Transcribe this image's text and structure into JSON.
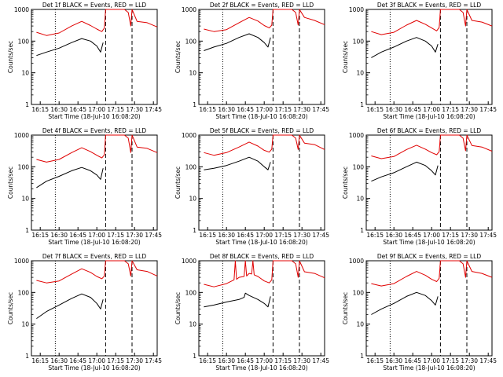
{
  "page": {
    "title_template": "Det {n}f BLACK = Events, RED = LLD",
    "xlabel": "Start Time (18-Jul-10 16:08:20)",
    "ylabel": "Counts/sec"
  },
  "colors": {
    "events": "#000000",
    "lld": "#e00000",
    "axis": "#000000",
    "background": "#ffffff"
  },
  "chart_data": [
    {
      "type": "line",
      "title": "Det 1f BLACK = Events, RED = LLD",
      "xlabel": "Start Time (18-Jul-10 16:08:20)",
      "ylabel": "Counts/sec",
      "y_scale": "log",
      "ylim": [
        1,
        1000
      ],
      "xlim": [
        "16:08",
        "17:48"
      ],
      "x_ticks": [
        "16:15",
        "16:30",
        "16:45",
        "17:00",
        "17:15",
        "17:30",
        "17:45"
      ],
      "y_ticks": [
        1,
        10,
        100,
        1000
      ],
      "vlines": [
        {
          "x": "16:27",
          "style": "dotted"
        },
        {
          "x": "17:07",
          "style": "dashed"
        },
        {
          "x": "17:28",
          "style": "dashed"
        }
      ],
      "series": [
        {
          "name": "LLD",
          "color": "#e00000",
          "x": [
            "16:12",
            "16:20",
            "16:30",
            "16:40",
            "16:48",
            "16:55",
            "17:00",
            "17:04",
            "17:06",
            "17:07",
            "17:15",
            "17:22",
            "17:25",
            "17:27",
            "17:28",
            "17:32",
            "17:40",
            "17:48"
          ],
          "y": [
            190,
            150,
            180,
            300,
            420,
            310,
            240,
            200,
            260,
            1000,
            1000,
            1000,
            800,
            300,
            1000,
            420,
            380,
            280
          ]
        },
        {
          "name": "Events",
          "color": "#000000",
          "x": [
            "16:12",
            "16:20",
            "16:30",
            "16:40",
            "16:48",
            "16:55",
            "17:00",
            "17:03",
            "17:05"
          ],
          "y": [
            35,
            45,
            60,
            90,
            120,
            100,
            70,
            45,
            90
          ]
        }
      ]
    },
    {
      "type": "line",
      "title": "Det 2f BLACK = Events, RED = LLD",
      "xlabel": "Start Time (18-Jul-10 16:08:20)",
      "ylabel": "Counts/sec",
      "y_scale": "log",
      "ylim": [
        1,
        1000
      ],
      "xlim": [
        "16:08",
        "17:48"
      ],
      "x_ticks": [
        "16:15",
        "16:30",
        "16:45",
        "17:00",
        "17:15",
        "17:30",
        "17:45"
      ],
      "y_ticks": [
        1,
        10,
        100,
        1000
      ],
      "vlines": [
        {
          "x": "16:27",
          "style": "dotted"
        },
        {
          "x": "17:07",
          "style": "dashed"
        },
        {
          "x": "17:28",
          "style": "dashed"
        }
      ],
      "series": [
        {
          "name": "LLD",
          "color": "#e00000",
          "x": [
            "16:12",
            "16:20",
            "16:30",
            "16:40",
            "16:48",
            "16:55",
            "17:00",
            "17:04",
            "17:06",
            "17:07",
            "17:15",
            "17:22",
            "17:25",
            "17:27",
            "17:28",
            "17:32",
            "17:40",
            "17:48"
          ],
          "y": [
            240,
            200,
            230,
            380,
            560,
            430,
            310,
            260,
            320,
            1000,
            1000,
            1000,
            800,
            320,
            1000,
            560,
            450,
            330
          ]
        },
        {
          "name": "Events",
          "color": "#000000",
          "x": [
            "16:12",
            "16:20",
            "16:30",
            "16:40",
            "16:48",
            "16:55",
            "17:00",
            "17:03",
            "17:05"
          ],
          "y": [
            50,
            65,
            85,
            130,
            170,
            130,
            90,
            65,
            130
          ]
        }
      ]
    },
    {
      "type": "line",
      "title": "Det 3f BLACK = Events, RED = LLD",
      "xlabel": "Start Time (18-Jul-10 16:08:20)",
      "ylabel": "Counts/sec",
      "y_scale": "log",
      "ylim": [
        1,
        1000
      ],
      "xlim": [
        "16:08",
        "17:48"
      ],
      "x_ticks": [
        "16:15",
        "16:30",
        "16:45",
        "17:00",
        "17:15",
        "17:30",
        "17:45"
      ],
      "y_ticks": [
        1,
        10,
        100,
        1000
      ],
      "vlines": [
        {
          "x": "16:27",
          "style": "dotted"
        },
        {
          "x": "17:07",
          "style": "dashed"
        },
        {
          "x": "17:28",
          "style": "dashed"
        }
      ],
      "series": [
        {
          "name": "LLD",
          "color": "#e00000",
          "x": [
            "16:12",
            "16:20",
            "16:30",
            "16:40",
            "16:48",
            "16:55",
            "17:00",
            "17:04",
            "17:06",
            "17:07",
            "17:15",
            "17:22",
            "17:25",
            "17:27",
            "17:28",
            "17:32",
            "17:40",
            "17:48"
          ],
          "y": [
            200,
            160,
            190,
            320,
            450,
            340,
            260,
            210,
            270,
            1000,
            1000,
            1000,
            800,
            300,
            1000,
            450,
            400,
            300
          ]
        },
        {
          "name": "Events",
          "color": "#000000",
          "x": [
            "16:12",
            "16:20",
            "16:30",
            "16:40",
            "16:48",
            "16:55",
            "17:00",
            "17:03",
            "17:05"
          ],
          "y": [
            30,
            45,
            65,
            100,
            130,
            100,
            70,
            45,
            80
          ]
        }
      ]
    },
    {
      "type": "line",
      "title": "Det 4f BLACK = Events, RED = LLD",
      "xlabel": "Start Time (18-Jul-10 16:08:20)",
      "ylabel": "Counts/sec",
      "y_scale": "log",
      "ylim": [
        1,
        1000
      ],
      "xlim": [
        "16:08",
        "17:48"
      ],
      "x_ticks": [
        "16:15",
        "16:30",
        "16:45",
        "17:00",
        "17:15",
        "17:30",
        "17:45"
      ],
      "y_ticks": [
        1,
        10,
        100,
        1000
      ],
      "vlines": [
        {
          "x": "16:27",
          "style": "dotted"
        },
        {
          "x": "17:07",
          "style": "dashed"
        },
        {
          "x": "17:28",
          "style": "dashed"
        }
      ],
      "series": [
        {
          "name": "LLD",
          "color": "#e00000",
          "x": [
            "16:12",
            "16:20",
            "16:30",
            "16:40",
            "16:48",
            "16:55",
            "17:00",
            "17:04",
            "17:06",
            "17:07",
            "17:15",
            "17:22",
            "17:25",
            "17:27",
            "17:28",
            "17:32",
            "17:40",
            "17:48"
          ],
          "y": [
            170,
            140,
            170,
            280,
            400,
            300,
            230,
            190,
            240,
            1000,
            1000,
            1000,
            800,
            280,
            1000,
            420,
            380,
            280
          ]
        },
        {
          "name": "Events",
          "color": "#000000",
          "x": [
            "16:12",
            "16:20",
            "16:30",
            "16:40",
            "16:48",
            "16:55",
            "17:00",
            "17:03",
            "17:05"
          ],
          "y": [
            22,
            35,
            50,
            75,
            95,
            75,
            55,
            40,
            90
          ]
        }
      ]
    },
    {
      "type": "line",
      "title": "Det 5f BLACK = Events, RED = LLD",
      "xlabel": "Start Time (18-Jul-10 16:08:20)",
      "ylabel": "Counts/sec",
      "y_scale": "log",
      "ylim": [
        1,
        1000
      ],
      "xlim": [
        "16:08",
        "17:48"
      ],
      "x_ticks": [
        "16:15",
        "16:30",
        "16:45",
        "17:00",
        "17:15",
        "17:30",
        "17:45"
      ],
      "y_ticks": [
        1,
        10,
        100,
        1000
      ],
      "vlines": [
        {
          "x": "16:27",
          "style": "dotted"
        },
        {
          "x": "17:07",
          "style": "dashed"
        },
        {
          "x": "17:28",
          "style": "dashed"
        }
      ],
      "series": [
        {
          "name": "LLD",
          "color": "#e00000",
          "x": [
            "16:12",
            "16:20",
            "16:30",
            "16:40",
            "16:48",
            "16:55",
            "17:00",
            "17:04",
            "17:06",
            "17:07",
            "17:15",
            "17:22",
            "17:25",
            "17:27",
            "17:28",
            "17:32",
            "17:40",
            "17:48"
          ],
          "y": [
            280,
            230,
            280,
            420,
            600,
            450,
            330,
            290,
            360,
            1000,
            1000,
            1000,
            800,
            350,
            1000,
            560,
            500,
            350
          ]
        },
        {
          "name": "Events",
          "color": "#000000",
          "x": [
            "16:12",
            "16:20",
            "16:30",
            "16:40",
            "16:48",
            "16:55",
            "17:00",
            "17:03",
            "17:05"
          ],
          "y": [
            80,
            90,
            110,
            150,
            200,
            150,
            100,
            80,
            140
          ]
        }
      ]
    },
    {
      "type": "line",
      "title": "Det 6f BLACK = Events, RED = LLD",
      "xlabel": "Start Time (18-Jul-10 16:08:20)",
      "ylabel": "Counts/sec",
      "y_scale": "log",
      "ylim": [
        1,
        1000
      ],
      "xlim": [
        "16:08",
        "17:48"
      ],
      "x_ticks": [
        "16:15",
        "16:30",
        "16:45",
        "17:00",
        "17:15",
        "17:30",
        "17:45"
      ],
      "y_ticks": [
        1,
        10,
        100,
        1000
      ],
      "vlines": [
        {
          "x": "16:27",
          "style": "dotted"
        },
        {
          "x": "17:07",
          "style": "dashed"
        },
        {
          "x": "17:28",
          "style": "dashed"
        }
      ],
      "series": [
        {
          "name": "LLD",
          "color": "#e00000",
          "x": [
            "16:12",
            "16:20",
            "16:30",
            "16:40",
            "16:48",
            "16:55",
            "17:00",
            "17:04",
            "17:06",
            "17:07",
            "17:15",
            "17:22",
            "17:25",
            "17:27",
            "17:28",
            "17:32",
            "17:40",
            "17:48"
          ],
          "y": [
            220,
            180,
            210,
            350,
            480,
            360,
            280,
            240,
            300,
            1000,
            1000,
            1000,
            800,
            320,
            1000,
            470,
            420,
            310
          ]
        },
        {
          "name": "Events",
          "color": "#000000",
          "x": [
            "16:12",
            "16:20",
            "16:30",
            "16:40",
            "16:48",
            "16:55",
            "17:00",
            "17:03",
            "17:05"
          ],
          "y": [
            35,
            48,
            65,
            100,
            140,
            110,
            75,
            55,
            110
          ]
        }
      ]
    },
    {
      "type": "line",
      "title": "Det 7f BLACK = Events, RED = LLD",
      "xlabel": "Start Time (18-Jul-10 16:08:20)",
      "ylabel": "Counts/sec",
      "y_scale": "log",
      "ylim": [
        1,
        1000
      ],
      "xlim": [
        "16:08",
        "17:48"
      ],
      "x_ticks": [
        "16:15",
        "16:30",
        "16:45",
        "17:00",
        "17:15",
        "17:30",
        "17:45"
      ],
      "y_ticks": [
        1,
        10,
        100,
        1000
      ],
      "vlines": [
        {
          "x": "16:27",
          "style": "dotted"
        },
        {
          "x": "17:07",
          "style": "dashed"
        },
        {
          "x": "17:28",
          "style": "dashed"
        }
      ],
      "series": [
        {
          "name": "LLD",
          "color": "#e00000",
          "x": [
            "16:12",
            "16:20",
            "16:30",
            "16:40",
            "16:48",
            "16:55",
            "17:00",
            "17:04",
            "17:06",
            "17:07",
            "17:15",
            "17:22",
            "17:25",
            "17:27",
            "17:28",
            "17:32",
            "17:40",
            "17:48"
          ],
          "y": [
            240,
            200,
            230,
            380,
            560,
            430,
            320,
            270,
            330,
            1000,
            1000,
            1000,
            800,
            330,
            1000,
            520,
            460,
            330
          ]
        },
        {
          "name": "Events",
          "color": "#000000",
          "x": [
            "16:12",
            "16:20",
            "16:30",
            "16:40",
            "16:48",
            "16:55",
            "17:00",
            "17:03",
            "17:05"
          ],
          "y": [
            15,
            25,
            40,
            65,
            90,
            70,
            45,
            30,
            60
          ]
        }
      ]
    },
    {
      "type": "line",
      "title": "Det 8f BLACK = Events, RED = LLD",
      "xlabel": "Start Time (18-Jul-10 16:08:20)",
      "ylabel": "Counts/sec",
      "y_scale": "log",
      "ylim": [
        1,
        1000
      ],
      "xlim": [
        "16:08",
        "17:48"
      ],
      "x_ticks": [
        "16:15",
        "16:30",
        "16:45",
        "17:00",
        "17:15",
        "17:30",
        "17:45"
      ],
      "y_ticks": [
        1,
        10,
        100,
        1000
      ],
      "vlines": [
        {
          "x": "16:27",
          "style": "dotted"
        },
        {
          "x": "17:07",
          "style": "dashed"
        },
        {
          "x": "17:28",
          "style": "dashed"
        }
      ],
      "series": [
        {
          "name": "LLD",
          "color": "#e00000",
          "x": [
            "16:12",
            "16:20",
            "16:30",
            "16:36",
            "16:37",
            "16:38",
            "16:40",
            "16:44",
            "16:45",
            "16:46",
            "16:48",
            "16:50",
            "16:51",
            "16:52",
            "16:55",
            "17:00",
            "17:04",
            "17:06",
            "17:07",
            "17:15",
            "17:22",
            "17:25",
            "17:27",
            "17:28",
            "17:32",
            "17:40",
            "17:48"
          ],
          "y": [
            180,
            150,
            190,
            250,
            1000,
            260,
            300,
            320,
            1000,
            330,
            400,
            380,
            1000,
            360,
            320,
            230,
            200,
            250,
            1000,
            1000,
            1000,
            800,
            300,
            1000,
            450,
            400,
            290
          ]
        },
        {
          "name": "Events",
          "color": "#000000",
          "x": [
            "16:12",
            "16:20",
            "16:30",
            "16:40",
            "16:44",
            "16:45",
            "16:48",
            "16:55",
            "17:00",
            "17:03",
            "17:05"
          ],
          "y": [
            35,
            40,
            50,
            60,
            70,
            95,
            80,
            60,
            45,
            35,
            75
          ]
        }
      ]
    },
    {
      "type": "line",
      "title": "Det 9f BLACK = Events, RED = LLD",
      "xlabel": "Start Time (18-Jul-10 16:08:20)",
      "ylabel": "Counts/sec",
      "y_scale": "log",
      "ylim": [
        1,
        1000
      ],
      "xlim": [
        "16:08",
        "17:48"
      ],
      "x_ticks": [
        "16:15",
        "16:30",
        "16:45",
        "17:00",
        "17:15",
        "17:30",
        "17:45"
      ],
      "y_ticks": [
        1,
        10,
        100,
        1000
      ],
      "vlines": [
        {
          "x": "16:27",
          "style": "dotted"
        },
        {
          "x": "17:07",
          "style": "dashed"
        },
        {
          "x": "17:28",
          "style": "dashed"
        }
      ],
      "series": [
        {
          "name": "LLD",
          "color": "#e00000",
          "x": [
            "16:12",
            "16:20",
            "16:30",
            "16:40",
            "16:48",
            "16:55",
            "17:00",
            "17:04",
            "17:06",
            "17:07",
            "17:15",
            "17:22",
            "17:25",
            "17:27",
            "17:28",
            "17:32",
            "17:40",
            "17:48"
          ],
          "y": [
            190,
            160,
            190,
            320,
            460,
            350,
            260,
            220,
            280,
            1000,
            1000,
            1000,
            800,
            300,
            1000,
            460,
            400,
            300
          ]
        },
        {
          "name": "Events",
          "color": "#000000",
          "x": [
            "16:12",
            "16:20",
            "16:30",
            "16:40",
            "16:48",
            "16:55",
            "17:00",
            "17:03",
            "17:05"
          ],
          "y": [
            20,
            30,
            45,
            75,
            100,
            80,
            55,
            40,
            75
          ]
        }
      ]
    }
  ]
}
